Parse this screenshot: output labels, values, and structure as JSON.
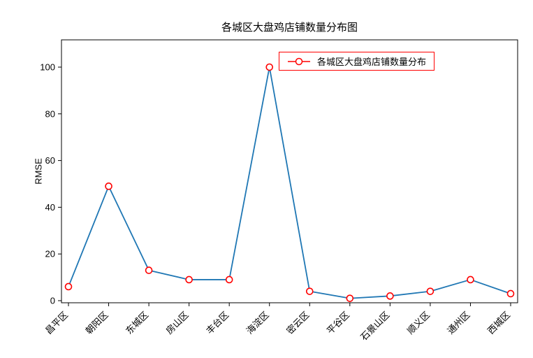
{
  "chart_data": {
    "type": "line",
    "title": "各城区大盘鸡店铺数量分布图",
    "ylabel": "RMSE",
    "xlabel": "",
    "legend": "各城区大盘鸡店铺数量分布",
    "legend_position": "upper-right",
    "categories": [
      "昌平区",
      "朝阳区",
      "东城区",
      "房山区",
      "丰台区",
      "海淀区",
      "密云区",
      "平谷区",
      "石景山区",
      "顺义区",
      "通州区",
      "西城区"
    ],
    "values": [
      6,
      49,
      13,
      9,
      9,
      100,
      4,
      1,
      2,
      4,
      9,
      3
    ],
    "yticks": [
      0,
      20,
      40,
      60,
      80,
      100
    ],
    "ylim": [
      0,
      105
    ],
    "grid": false,
    "line_color": "#1f77b4",
    "marker_color": "#ff0000",
    "marker_face": "#ffffff",
    "legend_border_color": "#ff0000",
    "axis_color": "#000000"
  }
}
